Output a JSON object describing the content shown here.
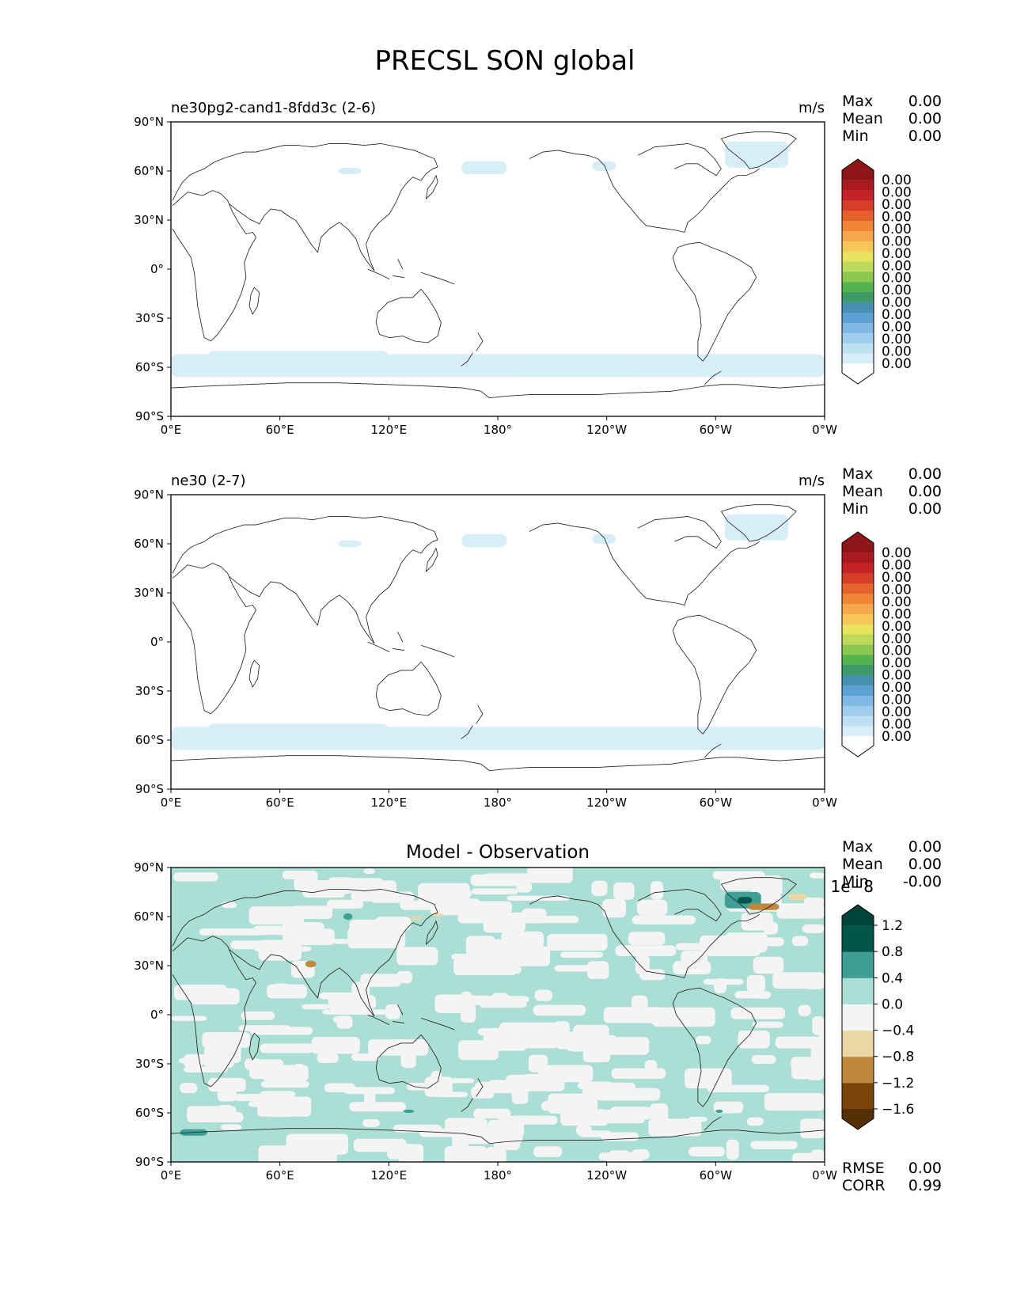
{
  "chart_data": {
    "type": "heatmap",
    "title": "PRECSL SON global",
    "x_ticks": [
      "0°E",
      "60°E",
      "120°E",
      "180°",
      "120°W",
      "60°W",
      "0°W"
    ],
    "y_ticks": [
      "90°N",
      "60°N",
      "30°N",
      "0°",
      "30°S",
      "60°S",
      "90°S"
    ],
    "lon_range": [
      0,
      360
    ],
    "lat_range": [
      -90,
      90
    ],
    "panels": [
      {
        "id": "test",
        "title_left": "ne30pg2-cand1-8fdd3c (2-6)",
        "title_center": "",
        "units": "m/s",
        "stats": [
          {
            "label": "Max",
            "value": "0.00"
          },
          {
            "label": "Mean",
            "value": "0.00"
          },
          {
            "label": "Min",
            "value": "0.00"
          }
        ],
        "colorbar": {
          "extend": "both",
          "offset_text": "",
          "colors": [
            "#ffffff",
            "#d7eef9",
            "#bde1f3",
            "#9fcdec",
            "#7fb8e2",
            "#5ba1d3",
            "#4690b0",
            "#3f9a6a",
            "#54b34f",
            "#8cc84f",
            "#bfd95a",
            "#e8e25f",
            "#f8c75a",
            "#f7a64b",
            "#f08538",
            "#e6622c",
            "#d73e27",
            "#c42226",
            "#a91b20",
            "#8e1518"
          ],
          "labels": [
            "0.00",
            "0.00",
            "0.00",
            "0.00",
            "0.00",
            "0.00",
            "0.00",
            "0.00",
            "0.00",
            "0.00",
            "0.00",
            "0.00",
            "0.00",
            "0.00",
            "0.00",
            "0.00"
          ]
        },
        "note": "Snow mostly near zero; light blue bands over Southern Ocean (~55-65S), Greenland, and northeast Siberia/Kamchatka."
      },
      {
        "id": "ref",
        "title_left": "ne30 (2-7)",
        "title_center": "",
        "units": "m/s",
        "stats": [
          {
            "label": "Max",
            "value": "0.00"
          },
          {
            "label": "Mean",
            "value": "0.00"
          },
          {
            "label": "Min",
            "value": "0.00"
          }
        ],
        "colorbar": {
          "extend": "both",
          "offset_text": "",
          "colors": [
            "#ffffff",
            "#d7eef9",
            "#bde1f3",
            "#9fcdec",
            "#7fb8e2",
            "#5ba1d3",
            "#4690b0",
            "#3f9a6a",
            "#54b34f",
            "#8cc84f",
            "#bfd95a",
            "#e8e25f",
            "#f8c75a",
            "#f7a64b",
            "#f08538",
            "#e6622c",
            "#d73e27",
            "#c42226",
            "#a91b20",
            "#8e1518"
          ],
          "labels": [
            "0.00",
            "0.00",
            "0.00",
            "0.00",
            "0.00",
            "0.00",
            "0.00",
            "0.00",
            "0.00",
            "0.00",
            "0.00",
            "0.00",
            "0.00",
            "0.00",
            "0.00",
            "0.00"
          ]
        },
        "note": "Similar pattern to test panel."
      },
      {
        "id": "diff",
        "title_left": "",
        "title_center": "Model - Observation",
        "units": "",
        "stats": [
          {
            "label": "Max",
            "value": "0.00"
          },
          {
            "label": "Mean",
            "value": "0.00"
          },
          {
            "label": "Min",
            "value": "-0.00"
          }
        ],
        "colorbar": {
          "extend": "both",
          "offset_text": "1e−8",
          "levels": [
            -1.6,
            -1.2,
            -0.8,
            -0.4,
            0.0,
            0.4,
            0.8,
            1.2
          ],
          "colors": [
            "#543005",
            "#7a4408",
            "#c0883a",
            "#ebd7a6",
            "#f4f4f4",
            "#abdfd6",
            "#3f9f95",
            "#01564c",
            "#00433a"
          ],
          "labels": [
            "1.2",
            "0.8",
            "0.4",
            "0.0",
            "−0.4",
            "−0.8",
            "−1.2",
            "−1.6"
          ]
        },
        "footer_stats": [
          {
            "label": "RMSE",
            "value": "0.00"
          },
          {
            "label": "CORR",
            "value": "0.99"
          }
        ],
        "note": "Mostly small positive (teal) and near-zero (grey) differences; dark teal over Greenland/Baffin, brown streaks near Greenland coast."
      }
    ]
  }
}
